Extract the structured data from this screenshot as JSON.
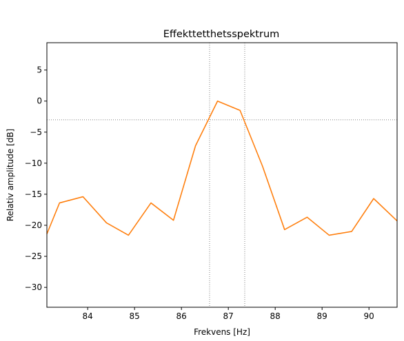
{
  "chart_data": {
    "type": "line",
    "title": "Effekttetthetsspektrum",
    "xlabel": "Frekvens [Hz]",
    "ylabel": "Relativ amplitude [dB]",
    "xlim": [
      83.13,
      90.6
    ],
    "ylim": [
      -33.2,
      9.4
    ],
    "xticks": [
      84,
      85,
      86,
      87,
      88,
      89,
      90
    ],
    "yticks": [
      5,
      0,
      -5,
      -10,
      -15,
      -20,
      -25,
      -30
    ],
    "grid": false,
    "series": [
      {
        "color": "#ff7f0e",
        "x": [
          83.13,
          83.4,
          83.9,
          84.4,
          84.87,
          85.35,
          85.83,
          86.3,
          86.77,
          87.25,
          87.73,
          88.2,
          88.68,
          89.15,
          89.63,
          90.1,
          90.6
        ],
        "y": [
          -21.4,
          -16.4,
          -15.4,
          -19.6,
          -21.6,
          -16.4,
          -19.2,
          -7.2,
          0.0,
          -1.5,
          -10.5,
          -20.7,
          -18.7,
          -21.6,
          -21.0,
          -15.7,
          -19.3
        ]
      }
    ],
    "reference_lines": {
      "color": "#808080",
      "style": "dotted",
      "horizontal_y": [
        -3.01
      ],
      "vertical_x": [
        86.6,
        87.35
      ]
    }
  }
}
